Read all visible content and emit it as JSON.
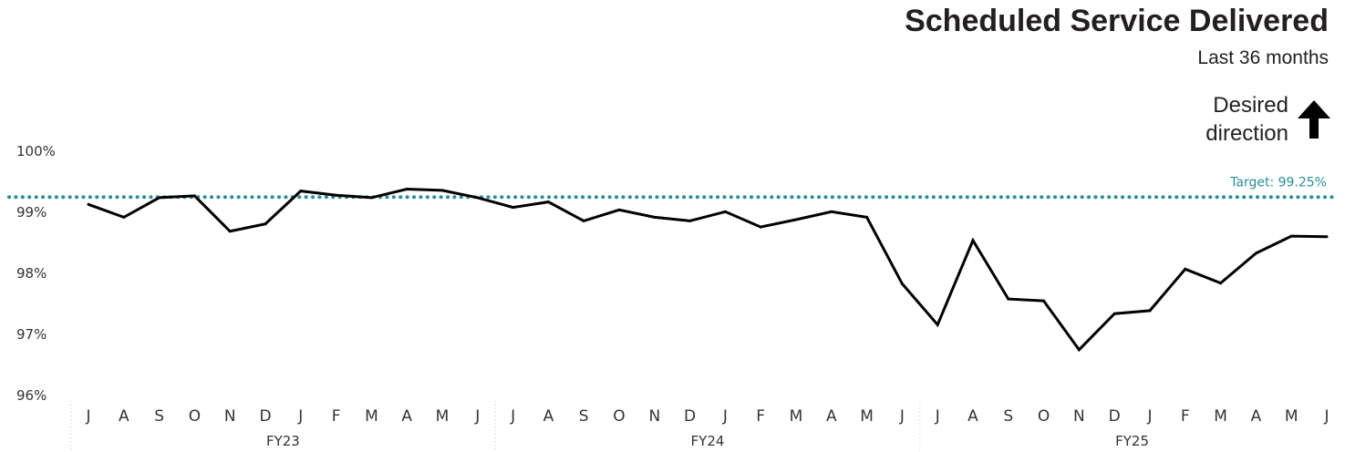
{
  "header": {
    "title": "Scheduled Service Delivered",
    "subtitle": "Last 36 months",
    "desired_line1": "Desired",
    "desired_line2": "direction",
    "desired_icon": "arrow-up-icon"
  },
  "colors": {
    "line": "#000000",
    "target": "#2a8f99",
    "text": "#231f20"
  },
  "chart_data": {
    "type": "line",
    "title": "Scheduled Service Delivered",
    "subtitle": "Last 36 months",
    "ylim": [
      96,
      100
    ],
    "y_ticks": [
      100,
      99,
      98,
      97,
      96
    ],
    "y_tick_labels": [
      "100%",
      "99%",
      "98%",
      "97%",
      "96%"
    ],
    "categories": [
      "J",
      "A",
      "S",
      "O",
      "N",
      "D",
      "J",
      "F",
      "M",
      "A",
      "M",
      "J",
      "J",
      "A",
      "S",
      "O",
      "N",
      "D",
      "J",
      "F",
      "M",
      "A",
      "M",
      "J",
      "J",
      "A",
      "S",
      "O",
      "N",
      "D",
      "J",
      "F",
      "M",
      "A",
      "M",
      "J"
    ],
    "fiscal_years": [
      {
        "label": "FY23",
        "start": 0,
        "end": 11
      },
      {
        "label": "FY24",
        "start": 12,
        "end": 23
      },
      {
        "label": "FY25",
        "start": 24,
        "end": 35
      }
    ],
    "series": [
      {
        "values": [
          99.13,
          98.92,
          99.24,
          99.27,
          98.69,
          98.81,
          99.35,
          99.28,
          99.24,
          99.38,
          99.36,
          99.24,
          99.08,
          99.17,
          98.86,
          99.04,
          98.92,
          98.86,
          99.01,
          98.76,
          98.88,
          99.01,
          98.92,
          97.83,
          97.16,
          98.54,
          97.58,
          97.55,
          96.75,
          97.34,
          97.39,
          98.07,
          97.84,
          98.33,
          98.61,
          98.6
        ]
      }
    ],
    "target": {
      "value": 99.25,
      "label": "Target: 99.25%"
    },
    "grid": false
  }
}
